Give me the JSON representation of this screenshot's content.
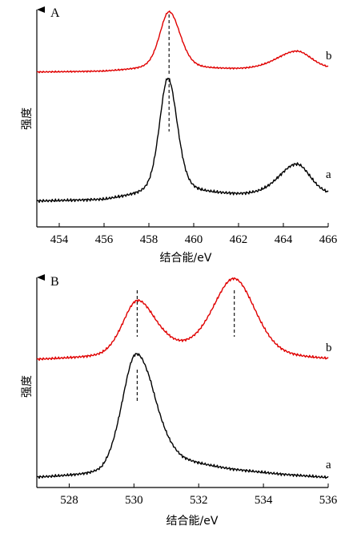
{
  "chart_data": [
    {
      "type": "line",
      "panel_label": "A",
      "xlabel": "结合能/eV",
      "ylabel": "强度",
      "xlim": [
        453,
        466
      ],
      "x_ticks": [
        454,
        456,
        458,
        460,
        462,
        464,
        466
      ],
      "y_ticks": false,
      "grid": false,
      "colors": {
        "a": "#000000",
        "b": "#e00000",
        "marker": "#000000"
      },
      "series": [
        {
          "name": "b",
          "peaks": [
            {
              "center": 458.9,
              "height": 0.98,
              "width_left": 0.42,
              "width_right": 0.5
            },
            {
              "center": 464.6,
              "height": 0.31,
              "width_left": 0.9,
              "width_right": 0.65
            }
          ],
          "baseline": [
            [
              453.0,
              0.0
            ],
            [
              456.0,
              0.01
            ],
            [
              458.0,
              0.05
            ],
            [
              460.0,
              0.05
            ],
            [
              462.0,
              0.04
            ],
            [
              466.0,
              0.05
            ]
          ]
        },
        {
          "name": "a",
          "peaks": [
            {
              "center": 458.85,
              "height": 1.0,
              "width_left": 0.38,
              "width_right": 0.42
            },
            {
              "center": 464.6,
              "height": 0.27,
              "width_left": 0.8,
              "width_right": 0.6
            }
          ],
          "baseline": [
            [
              453.0,
              0.0
            ],
            [
              456.0,
              0.01
            ],
            [
              458.0,
              0.06
            ],
            [
              460.0,
              0.07
            ],
            [
              462.0,
              0.05
            ],
            [
              466.0,
              0.05
            ]
          ]
        }
      ],
      "peak_markers": [
        458.9
      ]
    },
    {
      "type": "line",
      "panel_label": "B",
      "xlabel": "结合能/eV",
      "ylabel": "强度",
      "xlim": [
        527,
        536
      ],
      "x_ticks": [
        528,
        530,
        532,
        534,
        536
      ],
      "y_ticks": false,
      "grid": false,
      "colors": {
        "a": "#000000",
        "b": "#e00000",
        "marker": "#000000"
      },
      "series": [
        {
          "name": "b",
          "peaks": [
            {
              "center": 530.1,
              "height": 0.55,
              "width_left": 0.45,
              "width_right": 0.55
            },
            {
              "center": 533.1,
              "height": 0.8,
              "width_left": 0.65,
              "width_right": 0.65
            }
          ],
          "baseline": [
            [
              527.0,
              0.0
            ],
            [
              529.0,
              0.02
            ],
            [
              531.0,
              0.1
            ],
            [
              532.0,
              0.08
            ],
            [
              534.5,
              0.02
            ],
            [
              536.0,
              0.0
            ]
          ]
        },
        {
          "name": "a",
          "peaks": [
            {
              "center": 530.05,
              "height": 1.0,
              "width_left": 0.42,
              "width_right": 0.55
            }
          ],
          "baseline": [
            [
              527.0,
              0.0
            ],
            [
              529.0,
              0.02
            ],
            [
              530.5,
              0.22
            ],
            [
              531.5,
              0.13
            ],
            [
              533.0,
              0.07
            ],
            [
              534.5,
              0.03
            ],
            [
              536.0,
              0.0
            ]
          ]
        }
      ],
      "peak_markers": [
        530.1,
        533.1
      ]
    }
  ]
}
